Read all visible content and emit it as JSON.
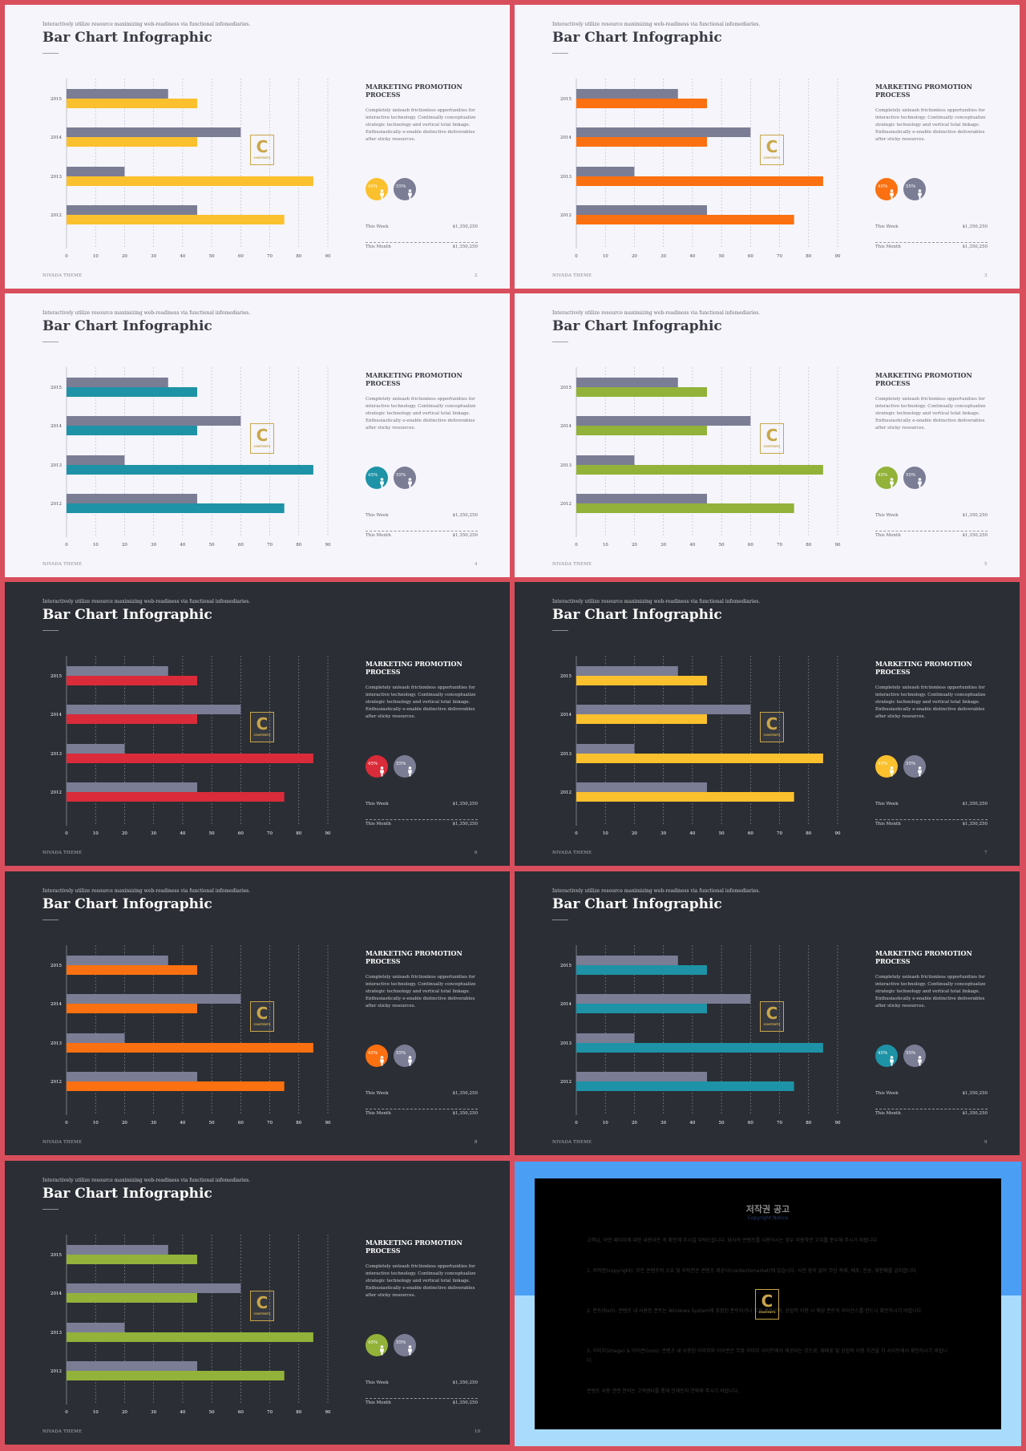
{
  "shared": {
    "tagline": "Interactively utilize resource maximizing web-readiness via functional infomediaries.",
    "title": "Bar Chart Infographic",
    "heading": "MARKETING PROMOTION PROCESS",
    "description": "Completely unleash frictionless opportunities for interactive technology. Continually conceptualize strategic technology and vertical total linkage. Enthusiastically e-enable distinctive deliverables after sticky resources.",
    "footer": "NIVADA THEME",
    "stats": [
      {
        "label": "This Week",
        "value": "$1,350,250"
      },
      {
        "label": "This Month",
        "value": "$1,350,250"
      }
    ],
    "circles": [
      {
        "label": "45%",
        "value": 45
      },
      {
        "label": "55%",
        "value": 55
      }
    ],
    "logo_letter": "C",
    "logo_text": "CONTENTS"
  },
  "colors": {
    "outer_frame": "#d94e5c",
    "light_bg": "#f5f5fb",
    "dark_bg": "#2b2e35",
    "gray_bar": "#7b7d95",
    "logo_gold": "#c9a649"
  },
  "chart_data": {
    "type": "bar",
    "orientation": "horizontal",
    "categories": [
      "2015",
      "2014",
      "2013",
      "2012"
    ],
    "series": [
      {
        "values": [
          35,
          60,
          20,
          45
        ]
      },
      {
        "values": [
          45,
          45,
          85,
          75
        ]
      }
    ],
    "xticks": [
      "0",
      "10",
      "20",
      "30",
      "40",
      "50",
      "60",
      "70",
      "80",
      "90"
    ],
    "xlim": [
      0,
      90
    ],
    "grid": true
  },
  "slides": [
    {
      "theme": "light",
      "accent": "#fbc02d",
      "page": "2"
    },
    {
      "theme": "light",
      "accent": "#fb7010",
      "page": "3"
    },
    {
      "theme": "light",
      "accent": "#1e92a6",
      "page": "4"
    },
    {
      "theme": "light",
      "accent": "#92b23a",
      "page": "5"
    },
    {
      "theme": "dark",
      "accent": "#d92b39",
      "page": "6"
    },
    {
      "theme": "dark",
      "accent": "#fbc02d",
      "page": "7"
    },
    {
      "theme": "dark",
      "accent": "#fb7010",
      "page": "8"
    },
    {
      "theme": "dark",
      "accent": "#1e92a6",
      "page": "9"
    },
    {
      "theme": "dark",
      "accent": "#92b23a",
      "page": "10"
    }
  ],
  "notice": {
    "title": "저작권 공고",
    "subtitle": "Copyright Notice",
    "paragraphs": [
      "고객님, 어떤 페이지에 대한 내용이든 꼭 확인해 주시길 부탁드립니다. 당사의 콘텐츠를 사용하시는 경우 이용약관 고지를 준수해 주시기 바랍니다.",
      "1. 저작권(copyright): 모든 콘텐츠의 소유 및 저작권은 콘텐츠 제공사(contentsmarket)에 있습니다. 사전 동의 없이 무단 복제, 배포, 전송, 재판매를 금지합니다.",
      "2. 폰트(font): 콘텐츠 내 사용된 폰트는 Windows System에 포함된 폰트이거나 무료 폰트이며, 상업적 이용 시 해당 폰트의 라이선스를 반드시 확인하시기 바랍니다.",
      "3. 이미지(image) & 아이콘(icon): 콘텐츠 내 사용된 이미지와 아이콘은 무료 이미지 사이트에서 제공되는 것으로, 재배포 및 상업적 이용 조건을 각 사이트에서 확인하시기 바랍니다.",
      "콘텐츠 사용 관련 문의는 고객센터를 통해 언제든지 연락해 주시기 바랍니다."
    ]
  }
}
